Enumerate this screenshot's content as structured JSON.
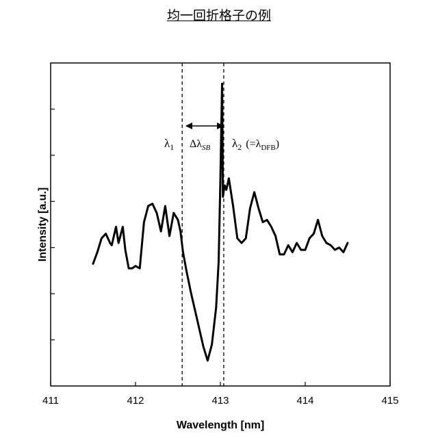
{
  "title": "均一回折格子の例",
  "chart_data": {
    "type": "line",
    "xlabel": "Wavelength [nm]",
    "ylabel": "Intensity [a.u.]",
    "xlim": [
      411,
      415
    ],
    "ylim": [
      0,
      7
    ],
    "x_ticks": [
      "411",
      "412",
      "413",
      "414",
      "415"
    ],
    "y_tick_values": [
      1,
      2,
      3,
      4,
      5,
      6
    ],
    "y_tick_labels_shown": false,
    "grid": false,
    "series": [
      {
        "color": "#000000",
        "x": [
          411.5,
          411.55,
          411.6,
          411.65,
          411.7,
          411.72,
          411.77,
          411.8,
          411.85,
          411.88,
          411.92,
          411.96,
          412.0,
          412.05,
          412.1,
          412.15,
          412.2,
          412.25,
          412.3,
          412.35,
          412.4,
          412.45,
          412.5,
          412.53,
          412.56,
          412.6,
          412.65,
          412.7,
          412.75,
          412.8,
          412.85,
          412.9,
          412.95,
          412.98,
          413.0,
          413.02,
          413.03,
          413.05,
          413.07,
          413.1,
          413.15,
          413.2,
          413.25,
          413.3,
          413.35,
          413.4,
          413.45,
          413.5,
          413.55,
          413.6,
          413.65,
          413.7,
          413.75,
          413.8,
          413.85,
          413.9,
          413.95,
          414.0,
          414.05,
          414.1,
          414.15,
          414.2,
          414.25,
          414.3,
          414.35,
          414.4,
          414.45,
          414.5
        ],
        "y": [
          2.65,
          2.9,
          3.2,
          3.3,
          3.1,
          3.05,
          3.45,
          3.1,
          3.45,
          2.95,
          2.55,
          2.55,
          2.6,
          2.55,
          3.55,
          3.9,
          3.95,
          3.75,
          3.35,
          3.9,
          3.25,
          3.75,
          3.6,
          3.35,
          2.9,
          2.5,
          2.05,
          1.65,
          1.25,
          0.85,
          0.55,
          0.9,
          1.7,
          2.7,
          4.45,
          6.55,
          4.1,
          4.35,
          4.25,
          4.5,
          3.9,
          3.2,
          3.1,
          3.2,
          3.85,
          4.2,
          3.85,
          3.55,
          3.6,
          3.45,
          3.25,
          2.85,
          2.85,
          3.05,
          2.9,
          3.1,
          2.95,
          2.95,
          3.2,
          3.3,
          3.6,
          3.25,
          3.1,
          3.05,
          2.95,
          3.0,
          2.9,
          3.1
        ]
      }
    ],
    "vlines": [
      412.55,
      413.04
    ],
    "annotations": {
      "lambda1": "λ",
      "lambda1_sub": "1",
      "delta": "Δλ",
      "delta_sub": "SB",
      "lambda2": "λ",
      "lambda2_sub": "2",
      "lambda2_paren_open": "(=λ",
      "lambda2_paren_sub": "DFB",
      "lambda2_paren_close": ")"
    }
  }
}
